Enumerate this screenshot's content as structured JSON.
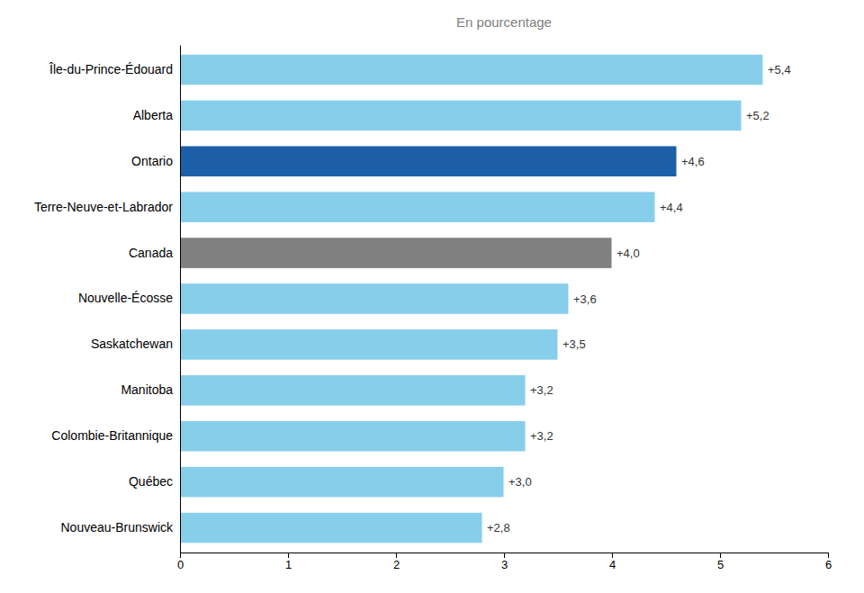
{
  "chart_data": {
    "type": "bar",
    "orientation": "horizontal",
    "title": "En pourcentage",
    "categories": [
      "Nouveau-Brunswick",
      "Québec",
      "Colombie-Britannique",
      "Manitoba",
      "Saskatchewan",
      "Nouvelle-Écosse",
      "Canada",
      "Terre-Neuve-et-Labrador",
      "Ontario",
      "Alberta",
      "Île-du-Prince-Édouard"
    ],
    "values": [
      2.8,
      3.0,
      3.2,
      3.2,
      3.5,
      3.6,
      4.0,
      4.4,
      4.6,
      5.2,
      5.4
    ],
    "value_labels": [
      "+2,8",
      "+3,0",
      "+3,2",
      "+3,2",
      "+3,5",
      "+3,6",
      "+4,0",
      "+4,4",
      "+4,6",
      "+5,2",
      "+5,4"
    ],
    "colors": [
      "#87CEEB",
      "#87CEEB",
      "#87CEEB",
      "#87CEEB",
      "#87CEEB",
      "#87CEEB",
      "#808080",
      "#87CEEB",
      "#1C5FA8",
      "#87CEEB",
      "#87CEEB"
    ],
    "data_labels": true,
    "xlim": [
      0,
      6
    ],
    "xticks": [
      0,
      1,
      2,
      3,
      4,
      5,
      6
    ],
    "grid": false
  }
}
